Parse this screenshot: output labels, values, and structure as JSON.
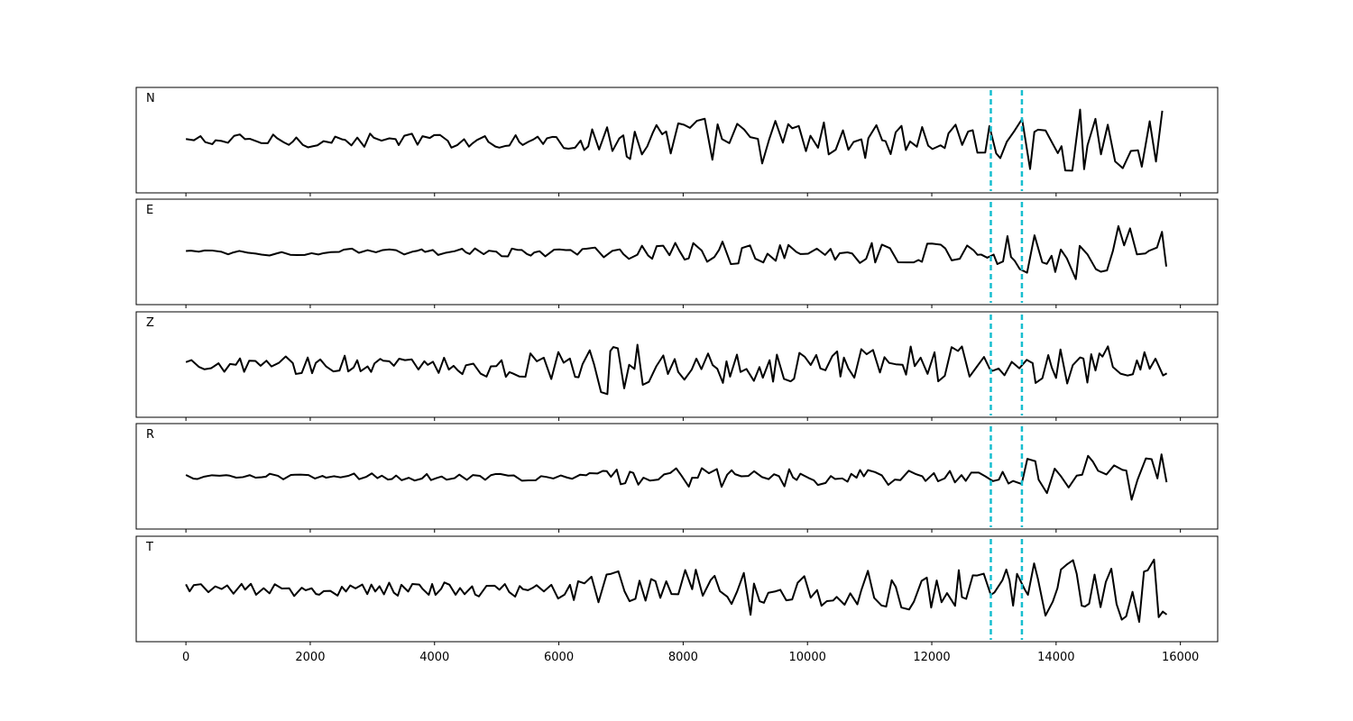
{
  "chart_data": {
    "type": "line",
    "title": "",
    "xlabel": "",
    "ylabel": "",
    "xlim": [
      -800,
      16600
    ],
    "x_ticks": [
      0,
      2000,
      4000,
      6000,
      8000,
      10000,
      12000,
      14000,
      16000
    ],
    "x_tick_labels": [
      "0",
      "2000",
      "4000",
      "6000",
      "8000",
      "10000",
      "12000",
      "14000",
      "16000"
    ],
    "grid": false,
    "sample_range": [
      0,
      15800
    ],
    "vertical_markers": {
      "color": "#17becf",
      "style": "dashed",
      "x": [
        12950,
        13450
      ]
    },
    "panels": [
      {
        "label": "N"
      },
      {
        "label": "E"
      },
      {
        "label": "Z"
      },
      {
        "label": "R"
      },
      {
        "label": "T"
      }
    ]
  }
}
